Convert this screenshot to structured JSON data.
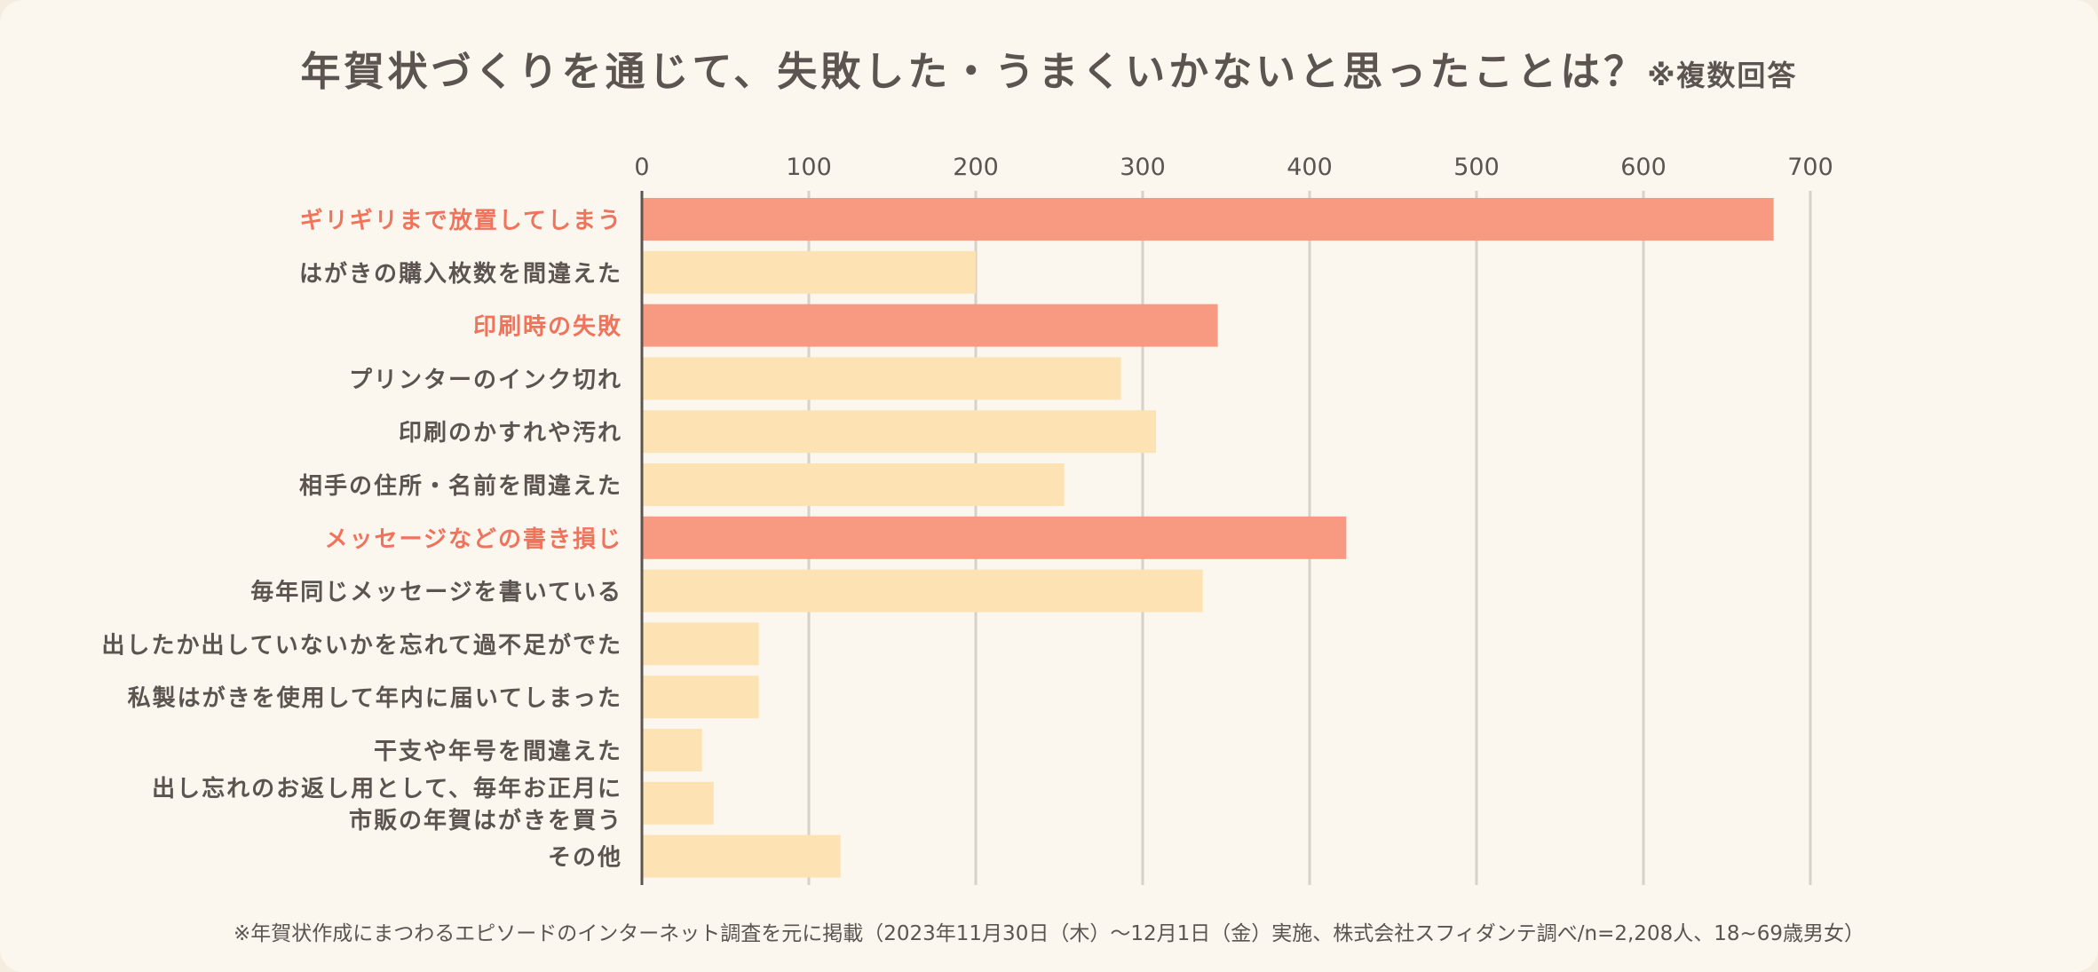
{
  "title": {
    "main": "年賀状づくりを通じて、失敗した・うまくいかないと思ったことは？",
    "note": "※複数回答"
  },
  "footnote": "※年賀状作成にまつわるエピソードのインターネット調査を元に掲載（2023年11月30日（木）～12月1日（金）実施、株式会社スフィダンテ調べ/n=2,208人、18~69歳男女）",
  "colors": {
    "highlight": "#f89a82",
    "highlight_text": "#f0735c",
    "normal": "#fde3b3",
    "label_text": "#5b5450",
    "grid": "#d6d1ca",
    "axis": "#5b5450",
    "background": "#fbf7ef"
  },
  "chart_data": {
    "type": "bar",
    "orientation": "horizontal",
    "categories": [
      "ギリギリまで放置してしまう",
      "はがきの購入枚数を間違えた",
      "印刷時の失敗",
      "プリンターのインク切れ",
      "印刷のかすれや汚れ",
      "相手の住所・名前を間違えた",
      "メッセージなどの書き損じ",
      "毎年同じメッセージを書いている",
      "出したか出していないかを忘れて過不足がでた",
      "私製はがきを使用して年内に届いてしまった",
      "干支や年号を間違えた",
      "出し忘れのお返し用として、毎年お正月に\n市販の年賀はがきを買う",
      "その他"
    ],
    "values": [
      678,
      200,
      345,
      287,
      308,
      253,
      422,
      336,
      70,
      70,
      36,
      43,
      119
    ],
    "highlighted": [
      true,
      false,
      true,
      false,
      false,
      false,
      true,
      false,
      false,
      false,
      false,
      false,
      false
    ],
    "xlim": [
      0,
      700
    ],
    "ticks": [
      "0",
      "100",
      "200",
      "300",
      "400",
      "500",
      "600",
      "700"
    ],
    "tick_values": [
      0,
      100,
      200,
      300,
      400,
      500,
      600,
      700
    ],
    "grid": true,
    "axis_position": "top",
    "legend": "none"
  }
}
